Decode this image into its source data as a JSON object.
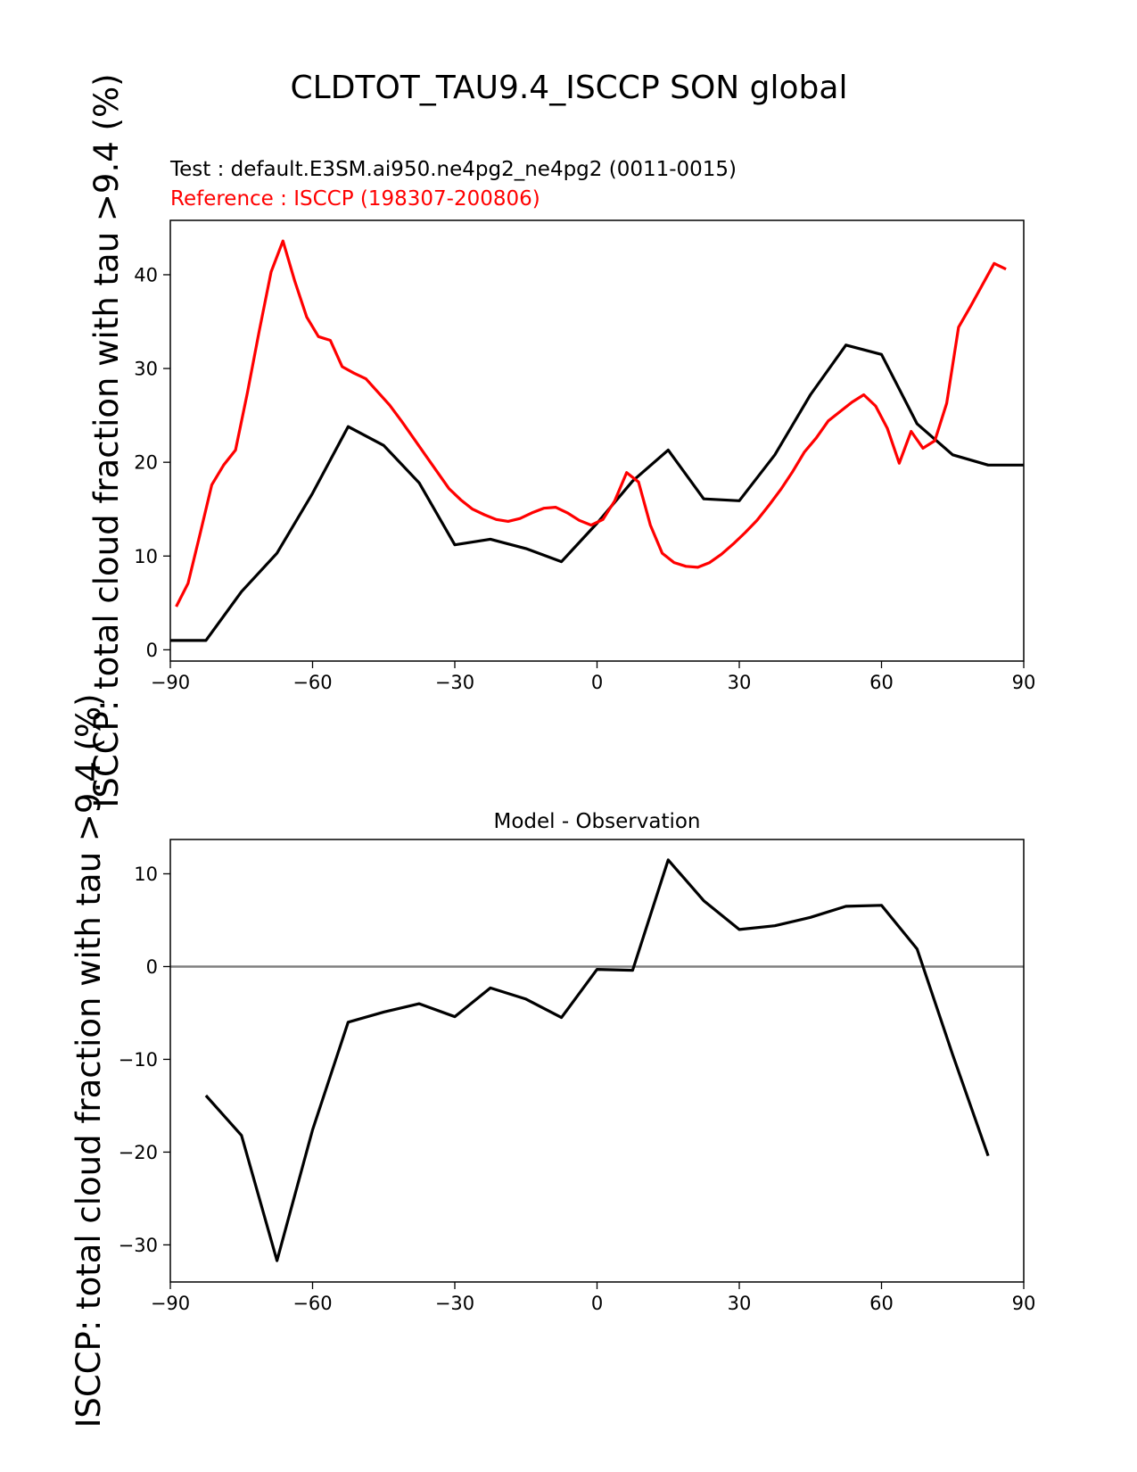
{
  "figure_title": "CLDTOT_TAU9.4_ISCCP SON global",
  "test_label": "Test : default.E3SM.ai950.ne4pg2_ne4pg2 (0011-0015)",
  "reference_label": "Reference : ISCCP (198307-200806)",
  "colors": {
    "test": "#000000",
    "reference": "#ff0000",
    "zero_line": "#808080"
  },
  "chart_data": [
    {
      "type": "line",
      "title": "",
      "xlabel": "",
      "ylabel": "ISCCP: total cloud fraction with tau >9.4 (%)",
      "xlim": [
        -90,
        90
      ],
      "ylim": [
        -1.2,
        45.8
      ],
      "xticks": [
        -90,
        -60,
        -30,
        0,
        30,
        60,
        90
      ],
      "xtick_labels": [
        "−90",
        "−60",
        "−30",
        "0",
        "30",
        "60",
        "90"
      ],
      "yticks": [
        0,
        10,
        20,
        30,
        40
      ],
      "ytick_labels": [
        "0",
        "10",
        "20",
        "30",
        "40"
      ],
      "series": [
        {
          "name": "Test",
          "color": "#000000",
          "x": [
            -90,
            -82.5,
            -75,
            -67.5,
            -60,
            -52.5,
            -45,
            -37.5,
            -30,
            -22.5,
            -15,
            -7.5,
            0,
            7.5,
            15,
            22.5,
            30,
            37.5,
            45,
            52.5,
            60,
            67.5,
            75,
            82.5,
            90
          ],
          "y": [
            1.0,
            1.0,
            6.2,
            10.3,
            16.7,
            23.8,
            21.8,
            17.8,
            11.2,
            11.8,
            10.8,
            9.4,
            13.5,
            18.0,
            21.3,
            16.1,
            15.9,
            20.8,
            27.2,
            32.5,
            31.5,
            24.1,
            20.8,
            19.7,
            19.7
          ]
        },
        {
          "name": "Reference",
          "color": "#ff0000",
          "x": [
            -88.75,
            -86.25,
            -83.75,
            -81.25,
            -78.75,
            -76.25,
            -73.75,
            -71.25,
            -68.75,
            -66.25,
            -63.75,
            -61.25,
            -58.75,
            -56.25,
            -53.75,
            -51.25,
            -48.75,
            -46.25,
            -43.75,
            -41.25,
            -38.75,
            -36.25,
            -33.75,
            -31.25,
            -28.75,
            -26.25,
            -23.75,
            -21.25,
            -18.75,
            -16.25,
            -13.75,
            -11.25,
            -8.75,
            -6.25,
            -3.75,
            -1.25,
            1.25,
            3.75,
            6.25,
            8.75,
            11.25,
            13.75,
            16.25,
            18.75,
            21.25,
            23.75,
            26.25,
            28.75,
            31.25,
            33.75,
            36.25,
            38.75,
            41.25,
            43.75,
            46.25,
            48.75,
            51.25,
            53.75,
            56.25,
            58.75,
            61.25,
            63.75,
            66.25,
            68.75,
            71.25,
            73.75,
            76.25,
            78.75,
            81.25,
            83.75,
            86.25
          ],
          "y": [
            4.6,
            7.1,
            12.3,
            17.6,
            19.7,
            21.3,
            27.4,
            34.0,
            40.3,
            43.6,
            39.3,
            35.5,
            33.4,
            33.0,
            30.2,
            29.5,
            28.9,
            27.5,
            26.1,
            24.4,
            22.6,
            20.8,
            19.0,
            17.2,
            16.0,
            15.0,
            14.4,
            13.9,
            13.7,
            14.0,
            14.6,
            15.1,
            15.2,
            14.6,
            13.8,
            13.3,
            13.9,
            15.9,
            18.9,
            17.9,
            13.3,
            10.3,
            9.3,
            8.9,
            8.8,
            9.3,
            10.2,
            11.3,
            12.5,
            13.8,
            15.4,
            17.1,
            19.0,
            21.1,
            22.6,
            24.4,
            25.4,
            26.4,
            27.2,
            26.0,
            23.6,
            19.9,
            23.3,
            21.5,
            22.3,
            26.3,
            34.4,
            36.6,
            38.9,
            41.2,
            40.6
          ]
        }
      ]
    },
    {
      "type": "line",
      "title": "Model - Observation",
      "xlabel": "",
      "ylabel": "ISCCP: total cloud fraction with tau >9.4 (%)",
      "xlim": [
        -90,
        90
      ],
      "ylim": [
        -34.0,
        13.7
      ],
      "xticks": [
        -90,
        -60,
        -30,
        0,
        30,
        60,
        90
      ],
      "xtick_labels": [
        "−90",
        "−60",
        "−30",
        "0",
        "30",
        "60",
        "90"
      ],
      "yticks": [
        -30,
        -20,
        -10,
        0,
        10
      ],
      "ytick_labels": [
        "−30",
        "−20",
        "−10",
        "0",
        "10"
      ],
      "series": [
        {
          "name": "Model - Observation",
          "color": "#000000",
          "x": [
            -82.5,
            -75,
            -67.5,
            -60,
            -52.5,
            -45,
            -37.5,
            -30,
            -22.5,
            -15,
            -7.5,
            0,
            7.5,
            15,
            22.5,
            30,
            37.5,
            45,
            52.5,
            60,
            67.5,
            75,
            82.5
          ],
          "y": [
            -13.9,
            -18.2,
            -31.7,
            -17.6,
            -6.0,
            -4.9,
            -4.0,
            -5.4,
            -2.3,
            -3.5,
            -5.5,
            -0.3,
            -0.4,
            11.5,
            7.1,
            4.0,
            4.4,
            5.3,
            6.5,
            6.6,
            1.9,
            -9.5,
            -20.4
          ]
        }
      ],
      "zero_line": 0
    }
  ]
}
